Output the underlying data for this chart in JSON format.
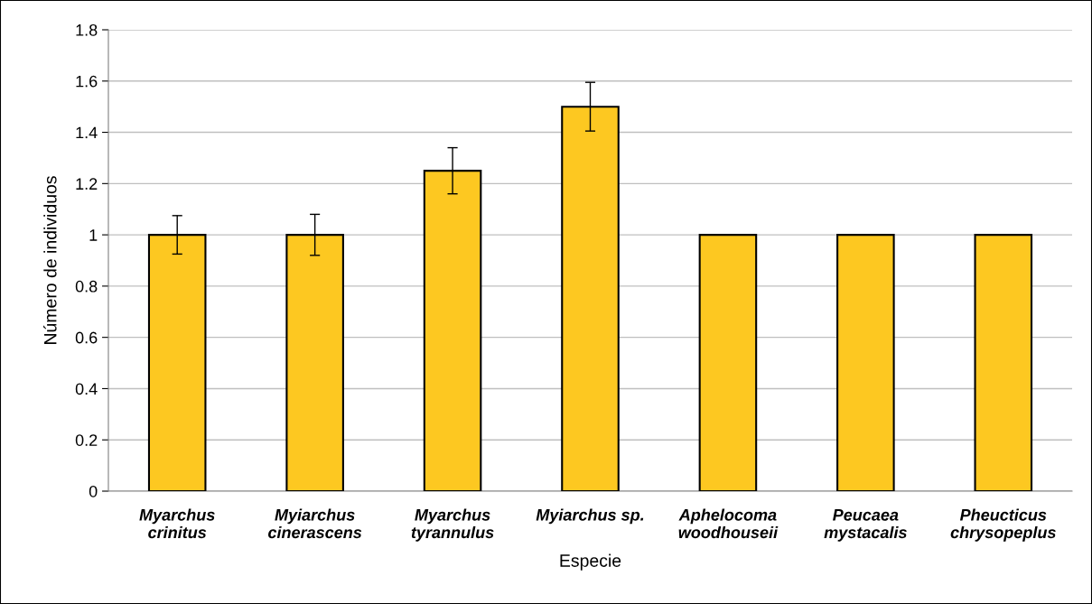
{
  "chart_data": {
    "type": "bar",
    "xlabel": "Especie",
    "ylabel": "Número de individuos",
    "categories": [
      "Myarchus\ncrinitus",
      "Myiarchus\ncinerascens",
      "Myarchus\ntyrannulus",
      "Myiarchus sp.",
      "Aphelocoma\nwoodhouseii",
      "Peucaea\nmystacalis",
      "Pheucticus\nchrysopeplus"
    ],
    "values": [
      1,
      1,
      1.25,
      1.5,
      1,
      1,
      1
    ],
    "errors": [
      0.075,
      0.08,
      0.09,
      0.095,
      null,
      null,
      null
    ],
    "color": "#fdc821",
    "ylim": [
      0,
      1.8
    ],
    "yticks": [
      0,
      {
        "value": 0.2,
        "label": "0.2"
      },
      {
        "value": 0.4,
        "label": "0.4"
      },
      {
        "value": 0.6,
        "label": "0.6"
      },
      {
        "value": 0.8,
        "label": "0.8"
      },
      1,
      {
        "value": 1.2,
        "label": "1.2"
      },
      {
        "value": 1.4,
        "label": "1.4"
      },
      {
        "value": 1.6,
        "label": "1.6"
      },
      {
        "value": 1.8,
        "label": "1.8"
      }
    ],
    "grid": "y",
    "legend": false
  }
}
